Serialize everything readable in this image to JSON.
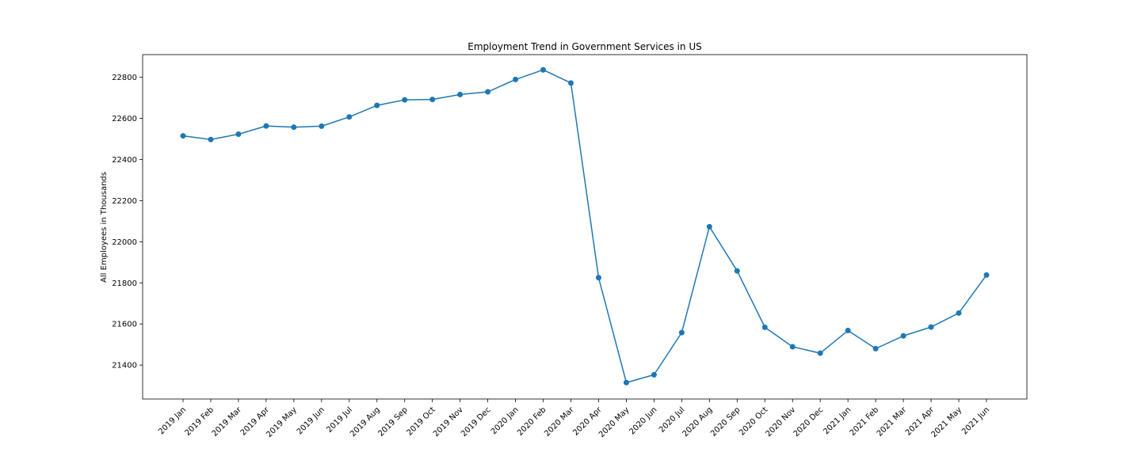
{
  "chart_data": {
    "type": "line",
    "title": "Employment Trend in Government Services in US",
    "xlabel": "",
    "ylabel": "All Employees in Thousands",
    "categories": [
      "2019 Jan",
      "2019 Feb",
      "2019 Mar",
      "2019 Apr",
      "2019 May",
      "2019 Jun",
      "2019 Jul",
      "2019 Aug",
      "2019 Sep",
      "2019 Oct",
      "2019 Nov",
      "2019 Dec",
      "2020 Jan",
      "2020 Feb",
      "2020 Mar",
      "2020 Apr",
      "2020 May",
      "2020 Jun",
      "2020 Jul",
      "2020 Aug",
      "2020 Sep",
      "2020 Oct",
      "2020 Nov",
      "2020 Dec",
      "2021 Jan",
      "2021 Feb",
      "2021 Mar",
      "2021 Apr",
      "2021 May",
      "2021 Jun"
    ],
    "series": [
      {
        "values": [
          22515,
          22497,
          22523,
          22563,
          22557,
          22562,
          22607,
          22663,
          22690,
          22692,
          22716,
          22729,
          22789,
          22836,
          22772,
          21825,
          21315,
          21353,
          21558,
          22073,
          21858,
          21584,
          21489,
          21458,
          21568,
          21480,
          21542,
          21585,
          21653,
          21838
        ],
        "color": "#1f77b4",
        "marker": "circle"
      }
    ],
    "ylim": [
      21235,
      22910
    ],
    "yticks": [
      21400,
      21600,
      21800,
      22000,
      22200,
      22400,
      22600,
      22800
    ],
    "grid": false,
    "legend": "none"
  }
}
